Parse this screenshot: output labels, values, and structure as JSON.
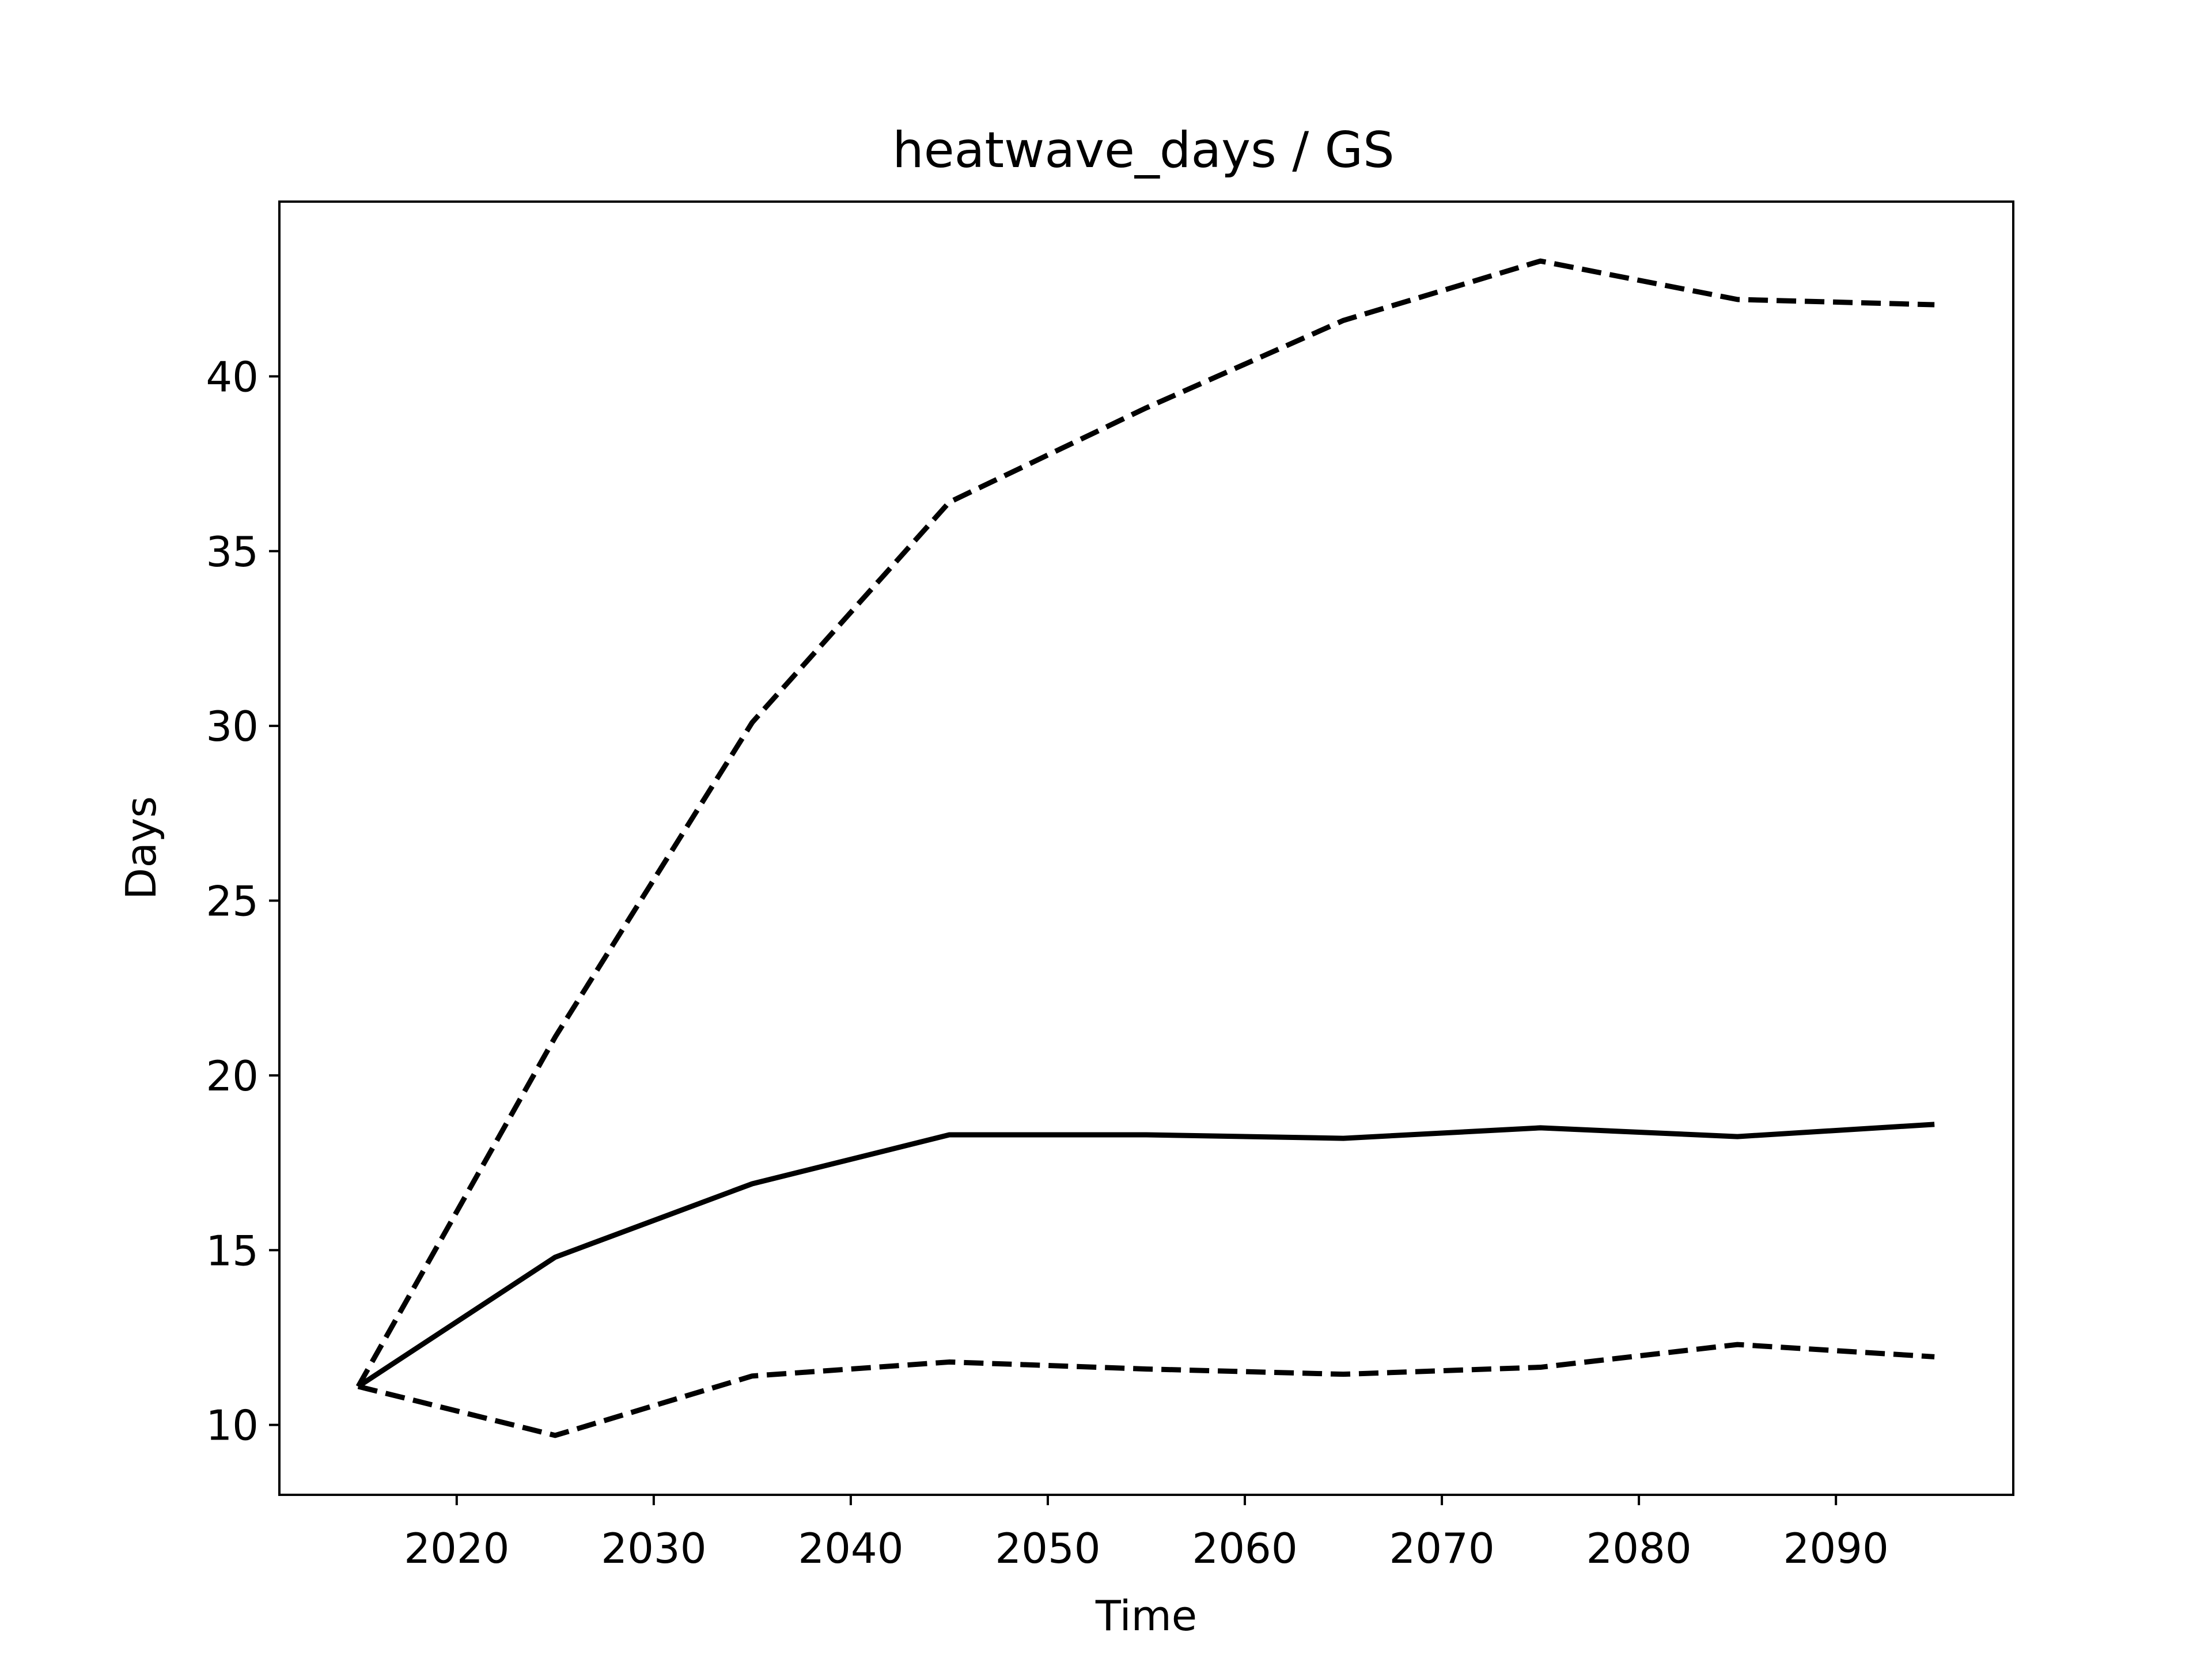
{
  "chart_data": {
    "type": "line",
    "title": "heatwave_days / GS",
    "xlabel": "Time",
    "ylabel": "Days",
    "xlim": [
      2011,
      2099
    ],
    "ylim": [
      8,
      45
    ],
    "xticks": [
      2020,
      2030,
      2040,
      2050,
      2060,
      2070,
      2080,
      2090
    ],
    "yticks": [
      10,
      15,
      20,
      25,
      30,
      35,
      40
    ],
    "grid": false,
    "legend": "none",
    "x": [
      2015,
      2025,
      2035,
      2045,
      2055,
      2065,
      2075,
      2085,
      2095
    ],
    "series": [
      {
        "style": "solid",
        "color": "#000000",
        "values": [
          11.1,
          14.8,
          16.9,
          18.3,
          18.3,
          18.2,
          18.5,
          18.25,
          18.6
        ]
      },
      {
        "style": "dashed",
        "color": "#000000",
        "values": [
          11.1,
          21.1,
          30.1,
          36.4,
          39.1,
          41.6,
          43.3,
          42.2,
          42.05
        ]
      },
      {
        "style": "dashed",
        "color": "#000000",
        "values": [
          11.1,
          9.7,
          11.4,
          11.8,
          11.6,
          11.45,
          11.65,
          12.3,
          11.95
        ]
      }
    ]
  }
}
